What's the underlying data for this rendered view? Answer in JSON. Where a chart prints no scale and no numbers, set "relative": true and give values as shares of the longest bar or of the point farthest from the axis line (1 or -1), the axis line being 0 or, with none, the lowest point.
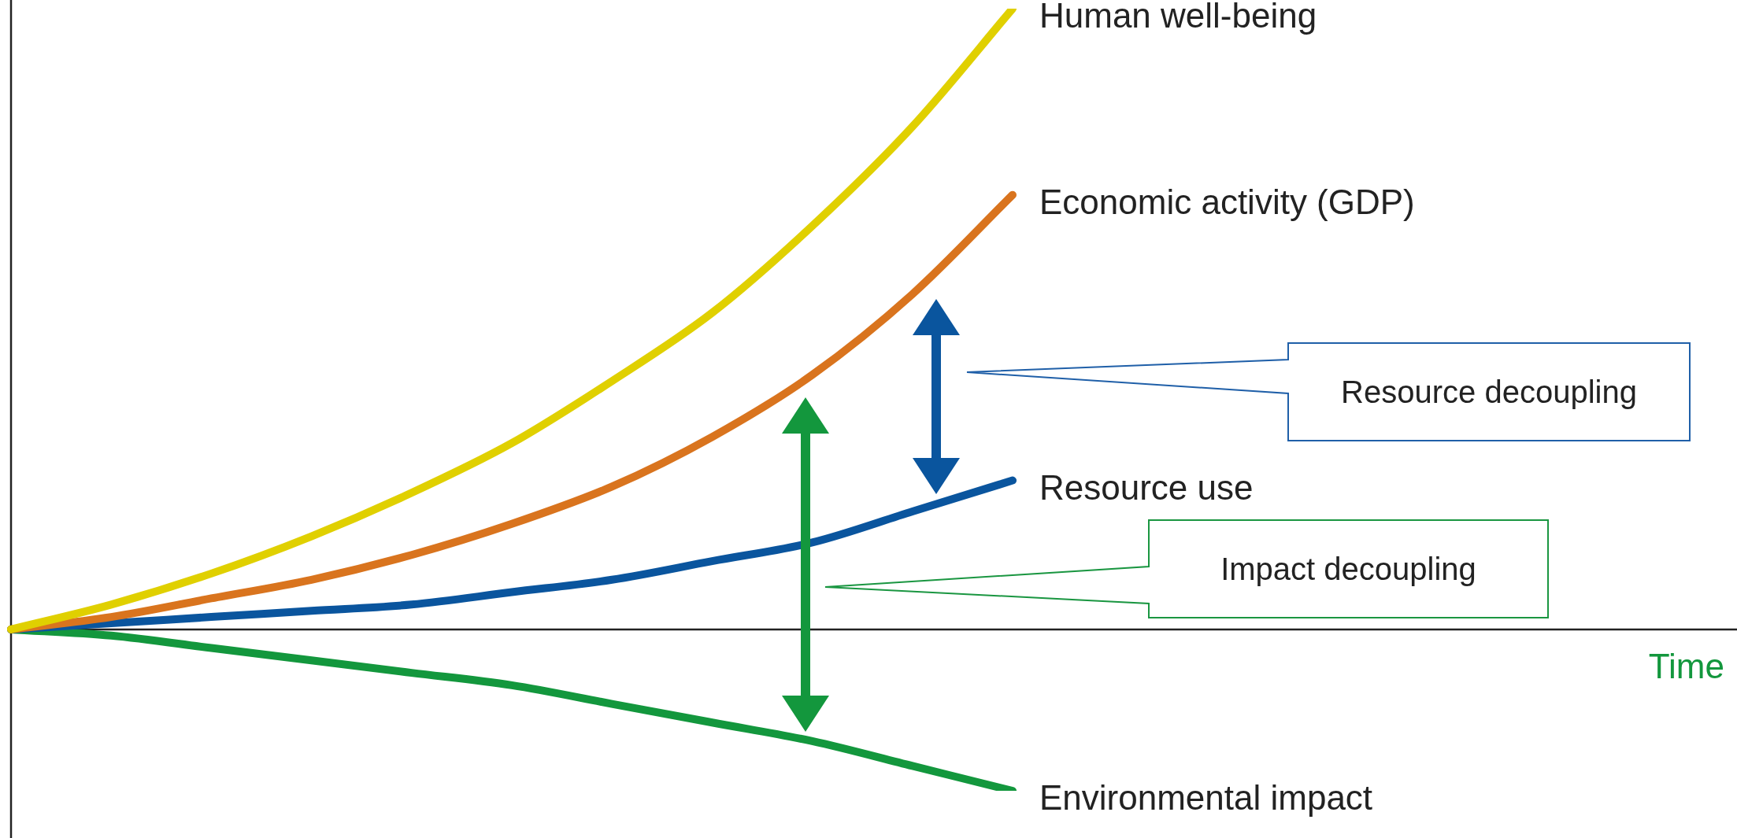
{
  "chart_data": {
    "type": "line",
    "relative": true,
    "categories": [
      null,
      null,
      null,
      null,
      null,
      null,
      null,
      null,
      null,
      null,
      null
    ],
    "series": [
      {
        "name": "Human well-being",
        "color": "#e0d000",
        "values": [
          0,
          0.04,
          0.09,
          0.15,
          0.22,
          0.3,
          0.4,
          0.51,
          0.65,
          0.81,
          1
        ]
      },
      {
        "name": "Economic activity (GDP)",
        "color": "#d9741e",
        "values": [
          0,
          0.02,
          0.05,
          0.08,
          0.12,
          0.17,
          0.23,
          0.31,
          0.41,
          0.54,
          0.7
        ]
      },
      {
        "name": "Resource use",
        "color": "#0a559e",
        "values": [
          0,
          0.01,
          0.02,
          0.03,
          0.04,
          0.06,
          0.08,
          0.11,
          0.14,
          0.19,
          0.24
        ]
      },
      {
        "name": "Environmental impact",
        "color": "#13973d",
        "values": [
          0,
          -0.01,
          -0.03,
          -0.05,
          -0.07,
          -0.09,
          -0.12,
          -0.15,
          -0.18,
          -0.22,
          -0.26
        ]
      }
    ],
    "annotations": [
      "Resource decoupling",
      "Impact decoupling",
      "Time"
    ],
    "legend": false,
    "grid": false,
    "marker": "none",
    "line_style": "solid"
  }
}
